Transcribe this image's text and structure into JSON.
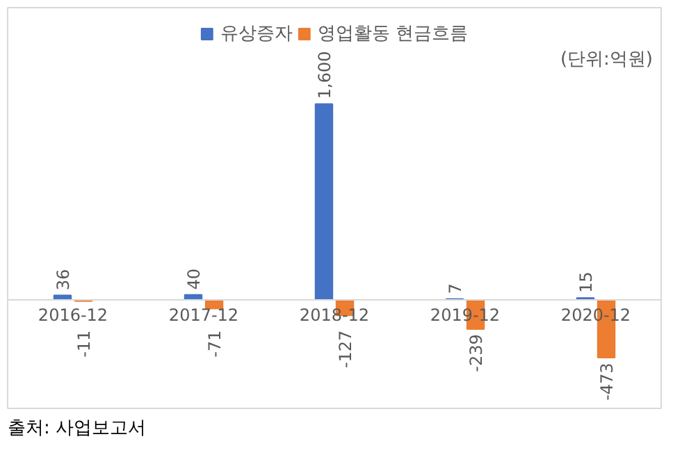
{
  "chart_data": {
    "type": "bar",
    "categories": [
      "2016-12",
      "2017-12",
      "2018-12",
      "2019-12",
      "2020-12"
    ],
    "series": [
      {
        "name": "유상증자",
        "color": "#4472c4",
        "values": [
          36,
          40,
          1600,
          7,
          15
        ],
        "value_labels": [
          "36",
          "40",
          "1,600",
          "7",
          "15"
        ]
      },
      {
        "name": "영업활동 현금흐름",
        "color": "#ed7d31",
        "values": [
          -11,
          -71,
          -127,
          -239,
          -473
        ],
        "value_labels": [
          "-11",
          "-71",
          "-127",
          "-239",
          "-473"
        ]
      }
    ],
    "legend": "top",
    "grid": false,
    "annotations": [
      "(단위:억원)",
      "출처: 사업보고서"
    ]
  }
}
